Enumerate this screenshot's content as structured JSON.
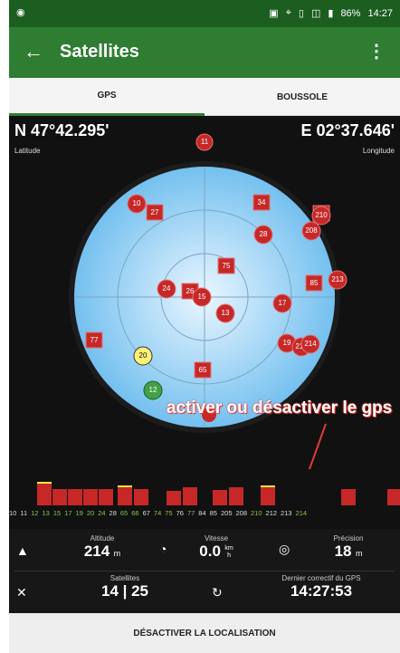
{
  "status": {
    "icons": [
      "camera-icon",
      "cast-icon",
      "location-icon",
      "vibrate-icon",
      "no-sim-icon",
      "battery-icon"
    ],
    "battery": "86%",
    "time": "14:27"
  },
  "appbar": {
    "title": "Satellites"
  },
  "tabs": [
    {
      "label": "GPS"
    },
    {
      "label": "BOUSSOLE"
    }
  ],
  "coords": {
    "lat": "N 47°42.295'",
    "lat_label": "Latitude",
    "lon": "E 02°37.646'",
    "lon_label": "Longitude"
  },
  "radar": {
    "sats": [
      "11",
      "10",
      "27",
      "34",
      "210",
      "28",
      "208",
      "75",
      "85",
      "213",
      "24",
      "26",
      "15",
      "13",
      "17",
      "19",
      "212",
      "214",
      "77",
      "20",
      "12",
      "65"
    ]
  },
  "annotation": "activer ou désactiver le gps",
  "chart_data": {
    "type": "bar",
    "categories": [
      "10",
      "11",
      "12",
      "13",
      "15",
      "17",
      "19",
      "20",
      "24",
      "28",
      "65",
      "66",
      "67",
      "74",
      "75",
      "76",
      "77",
      "84",
      "85",
      "205",
      "208",
      "210",
      "212",
      "213",
      "214"
    ],
    "ticks": [
      "10",
      "11",
      "12",
      "13",
      "15",
      "17",
      "19",
      "20",
      "24",
      "28",
      "65",
      "66",
      "67",
      "74",
      "75",
      "76",
      "77",
      "84",
      "85",
      "205",
      "208",
      "210",
      "212",
      "213",
      "214"
    ]
  },
  "stats": {
    "altitude_label": "Altitude",
    "altitude": "214",
    "altitude_unit": "m",
    "speed_label": "Vitesse",
    "speed": "0.0",
    "speed_unit_top": "km",
    "speed_unit_bottom": "h",
    "precision_label": "Précision",
    "precision": "18",
    "precision_unit": "m",
    "sats_label": "Satellites",
    "sats_value": "14 | 25",
    "fix_label": "Dernier correctif du GPS",
    "fix_value": "14:27:53"
  },
  "button": {
    "label": "DÉSACTIVER LA LOCALISATION"
  }
}
